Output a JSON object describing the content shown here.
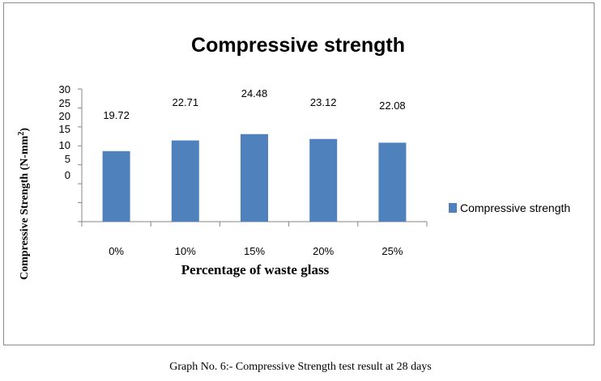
{
  "chart_data": {
    "type": "bar",
    "title": "Compressive strength",
    "categories": [
      "0%",
      "10%",
      "15%",
      "20%",
      "25%"
    ],
    "series": [
      {
        "name": "Compressive strength",
        "values": [
          19.72,
          22.71,
          24.48,
          23.12,
          22.08
        ],
        "color": "#4f81bd"
      }
    ],
    "data_labels": [
      "19.72",
      "22.71",
      "24.48",
      "23.12",
      "22.08"
    ],
    "xlabel": "Percentage of waste glass",
    "ylabel": "Compressive Strength (N-mm",
    "ylabel_superscript": "2",
    "ylabel_suffix": ")",
    "y_tick_labels": [
      "30",
      "25",
      "20",
      "15",
      "10",
      "5",
      "0"
    ],
    "legend": {
      "position": "right"
    },
    "grid": false
  },
  "caption": "Graph No. 6:- Compressive Strength test result at 28 days"
}
